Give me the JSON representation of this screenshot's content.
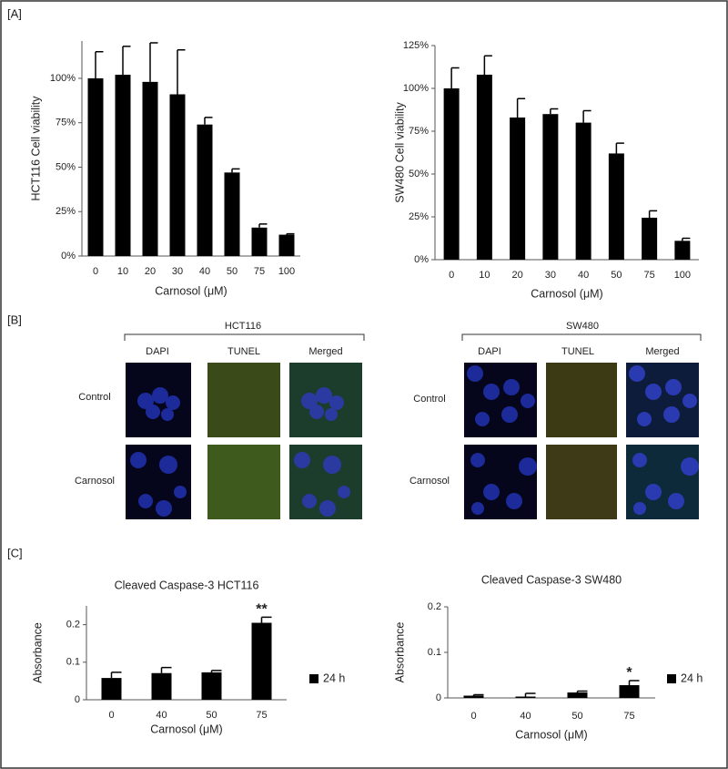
{
  "panel_labels": [
    "[A]",
    "[B]",
    "[C]"
  ],
  "microscopy": [
    {
      "name": "HCT116",
      "columns": [
        "DAPI",
        "TUNEL",
        "Merged"
      ],
      "rows": [
        "Control",
        "Carnosol"
      ]
    },
    {
      "name": "SW480",
      "columns": [
        "DAPI",
        "TUNEL",
        "Merged"
      ],
      "rows": [
        "Control",
        "Carnosol"
      ]
    }
  ],
  "chart_data": [
    {
      "type": "bar",
      "y_label": "HCT116 Cell viability",
      "x_label": "Carnosol (μM)",
      "categories": [
        "0",
        "10",
        "20",
        "30",
        "40",
        "50",
        "75",
        "100"
      ],
      "values": [
        100,
        102,
        98,
        91,
        74,
        47,
        16,
        12
      ],
      "errors": [
        15,
        16,
        22,
        25,
        4,
        2,
        2,
        0.5
      ],
      "color": "#000000",
      "ylim": [
        0,
        121
      ],
      "yticks": [
        {
          "value": 0,
          "label": "0%"
        },
        {
          "value": 25,
          "label": "25%"
        },
        {
          "value": 50,
          "label": "50%"
        },
        {
          "value": 75,
          "label": "75%"
        },
        {
          "value": 100,
          "label": "100%"
        }
      ]
    },
    {
      "type": "bar",
      "y_label": "SW480 Cell viability",
      "x_label": "Carnosol (μM)",
      "categories": [
        "0",
        "10",
        "20",
        "30",
        "40",
        "50",
        "75",
        "100"
      ],
      "values": [
        100,
        108,
        83,
        85,
        80,
        62,
        24.5,
        11
      ],
      "errors": [
        12,
        11,
        11,
        3,
        7,
        6,
        4,
        1.5
      ],
      "color": "#000000",
      "ylim": [
        0,
        125
      ],
      "yticks": [
        {
          "value": 0,
          "label": "0%"
        },
        {
          "value": 25,
          "label": "25%"
        },
        {
          "value": 50,
          "label": "50%"
        },
        {
          "value": 75,
          "label": "75%"
        },
        {
          "value": 100,
          "label": "100%"
        },
        {
          "value": 125,
          "label": "125%"
        }
      ]
    },
    {
      "type": "bar",
      "title": "Cleaved Caspase-3 HCT116",
      "y_label": "Absorbance",
      "x_label": "Carnosol (μM)",
      "categories": [
        "0",
        "40",
        "50",
        "75"
      ],
      "series": [
        {
          "name": "24 h",
          "color": "#000000",
          "values": [
            0.058,
            0.071,
            0.073,
            0.205
          ],
          "errors": [
            0.015,
            0.015,
            0.005,
            0.015
          ]
        }
      ],
      "annotations": [
        null,
        null,
        null,
        "**"
      ],
      "ylim": [
        0,
        0.25
      ],
      "yticks": [
        0,
        0.1,
        0.2
      ]
    },
    {
      "type": "bar",
      "title": "Cleaved Caspase-3 SW480",
      "y_label": "Absorbance",
      "x_label": "Carnosol (μM)",
      "categories": [
        "0",
        "40",
        "50",
        "75"
      ],
      "series": [
        {
          "name": "24 h",
          "color": "#000000",
          "values": [
            0.005,
            0.003,
            0.012,
            0.028
          ],
          "errors": [
            0.002,
            0.007,
            0.003,
            0.01
          ]
        }
      ],
      "annotations": [
        null,
        null,
        null,
        "*"
      ],
      "ylim": [
        0,
        0.2
      ],
      "yticks": [
        0,
        0.1,
        0.2
      ]
    }
  ]
}
